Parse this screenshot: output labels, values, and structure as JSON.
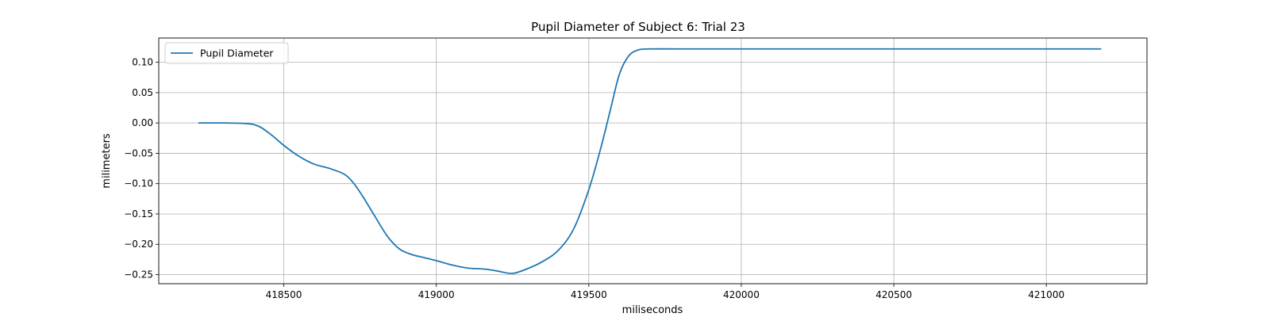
{
  "chart_data": {
    "type": "line",
    "title": "Pupil Diameter of Subject 6: Trial 23",
    "xlabel": "miliseconds",
    "ylabel": "milimeters",
    "xlim": [
      418090,
      421330
    ],
    "ylim": [
      -0.265,
      0.14
    ],
    "xticks": [
      418500,
      419000,
      419500,
      420000,
      420500,
      421000
    ],
    "yticks": [
      0.1,
      0.05,
      0.0,
      -0.05,
      -0.1,
      -0.15,
      -0.2,
      -0.25
    ],
    "ytick_labels": [
      "0.10",
      "0.05",
      "0.00",
      "−0.05",
      "−0.10",
      "−0.15",
      "−0.20",
      "−0.25"
    ],
    "grid": true,
    "legend_position": "top-left",
    "color": "#1f77b4",
    "series": [
      {
        "name": "Pupil Diameter",
        "x": [
          418220,
          418300,
          418380,
          418420,
          418460,
          418500,
          418550,
          418600,
          418650,
          418700,
          418730,
          418760,
          418800,
          418840,
          418880,
          418920,
          418960,
          419000,
          419050,
          419100,
          419160,
          419200,
          419250,
          419300,
          419350,
          419400,
          419450,
          419500,
          419540,
          419570,
          419600,
          419630,
          419660,
          419700,
          419800,
          420000,
          420500,
          421000,
          421180
        ],
        "y": [
          0.0,
          0.0,
          -0.001,
          -0.006,
          -0.02,
          -0.037,
          -0.055,
          -0.068,
          -0.075,
          -0.085,
          -0.1,
          -0.122,
          -0.155,
          -0.187,
          -0.208,
          -0.217,
          -0.222,
          -0.227,
          -0.234,
          -0.239,
          -0.241,
          -0.244,
          -0.248,
          -0.24,
          -0.228,
          -0.21,
          -0.175,
          -0.11,
          -0.04,
          0.02,
          0.08,
          0.11,
          0.12,
          0.122,
          0.122,
          0.122,
          0.122,
          0.122,
          0.122
        ]
      }
    ]
  }
}
